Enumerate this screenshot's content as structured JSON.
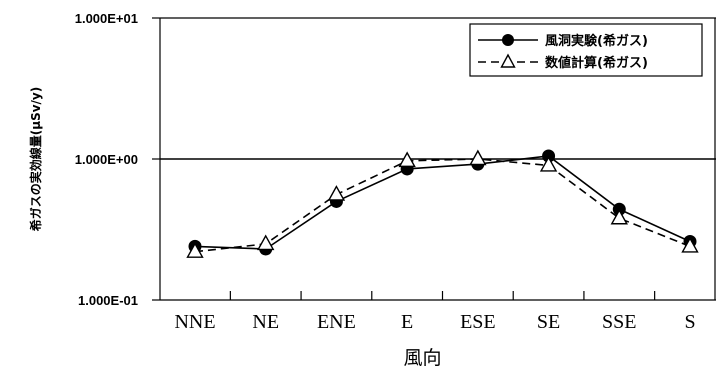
{
  "chart_data": {
    "type": "line",
    "title": "",
    "xlabel": "風向",
    "ylabel": "希ガスの実効線量(μSv/y)",
    "y_scale": "log",
    "ylim": [
      0.1,
      10
    ],
    "y_ticks": [
      "1.000E+01",
      "1.000E+00",
      "1.000E-01"
    ],
    "reference_line_y": 1.0,
    "categories": [
      "NNE",
      "NE",
      "ENE",
      "E",
      "ESE",
      "SE",
      "SSE",
      "S"
    ],
    "series": [
      {
        "name": "風洞実験(希ガス)",
        "marker": "filled-circle",
        "line": "solid",
        "color": "#000000",
        "values": [
          0.24,
          0.23,
          0.5,
          0.85,
          0.92,
          1.05,
          0.44,
          0.26
        ]
      },
      {
        "name": "数値計算(希ガス)",
        "marker": "open-triangle",
        "line": "dashed",
        "color": "#000000",
        "values": [
          0.22,
          0.25,
          0.56,
          0.97,
          1.0,
          0.9,
          0.38,
          0.24
        ]
      }
    ],
    "legend_position": "top-right",
    "grid": false
  }
}
